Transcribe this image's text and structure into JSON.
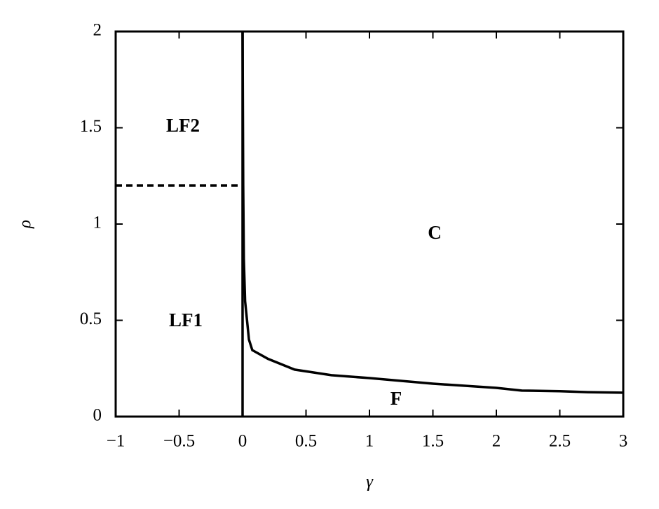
{
  "chart_data": {
    "type": "line",
    "xlabel": "γ",
    "ylabel": "ρ",
    "xlim": [
      -1,
      3
    ],
    "ylim": [
      0,
      2
    ],
    "xticks": [
      {
        "value": -1,
        "label": "−1"
      },
      {
        "value": -0.5,
        "label": "−0.5"
      },
      0,
      0.5,
      1,
      1.5,
      2,
      2.5,
      3
    ],
    "yticks": [
      0,
      0.5,
      1,
      1.5,
      2
    ],
    "series": [
      {
        "color": "#000000",
        "dash": false,
        "x": [
          0,
          0
        ],
        "values": [
          0,
          2
        ]
      },
      {
        "color": "#000000",
        "dash": false,
        "x": [
          0,
          0.005,
          0.01,
          0.02,
          0.05,
          0.077,
          0.2,
          0.41,
          0.7,
          1,
          1.5,
          2,
          2.2,
          2.5,
          2.72,
          3
        ],
        "values": [
          2,
          1.2,
          0.82,
          0.6,
          0.4,
          0.345,
          0.3,
          0.244,
          0.215,
          0.2,
          0.171,
          0.149,
          0.135,
          0.132,
          0.127,
          0.124
        ]
      },
      {
        "color": "#000000",
        "dash": true,
        "x": [
          -1,
          0
        ],
        "values": [
          1.2,
          1.2
        ]
      }
    ],
    "annotations": [
      "LF2",
      "LF1",
      "C",
      "F"
    ]
  }
}
